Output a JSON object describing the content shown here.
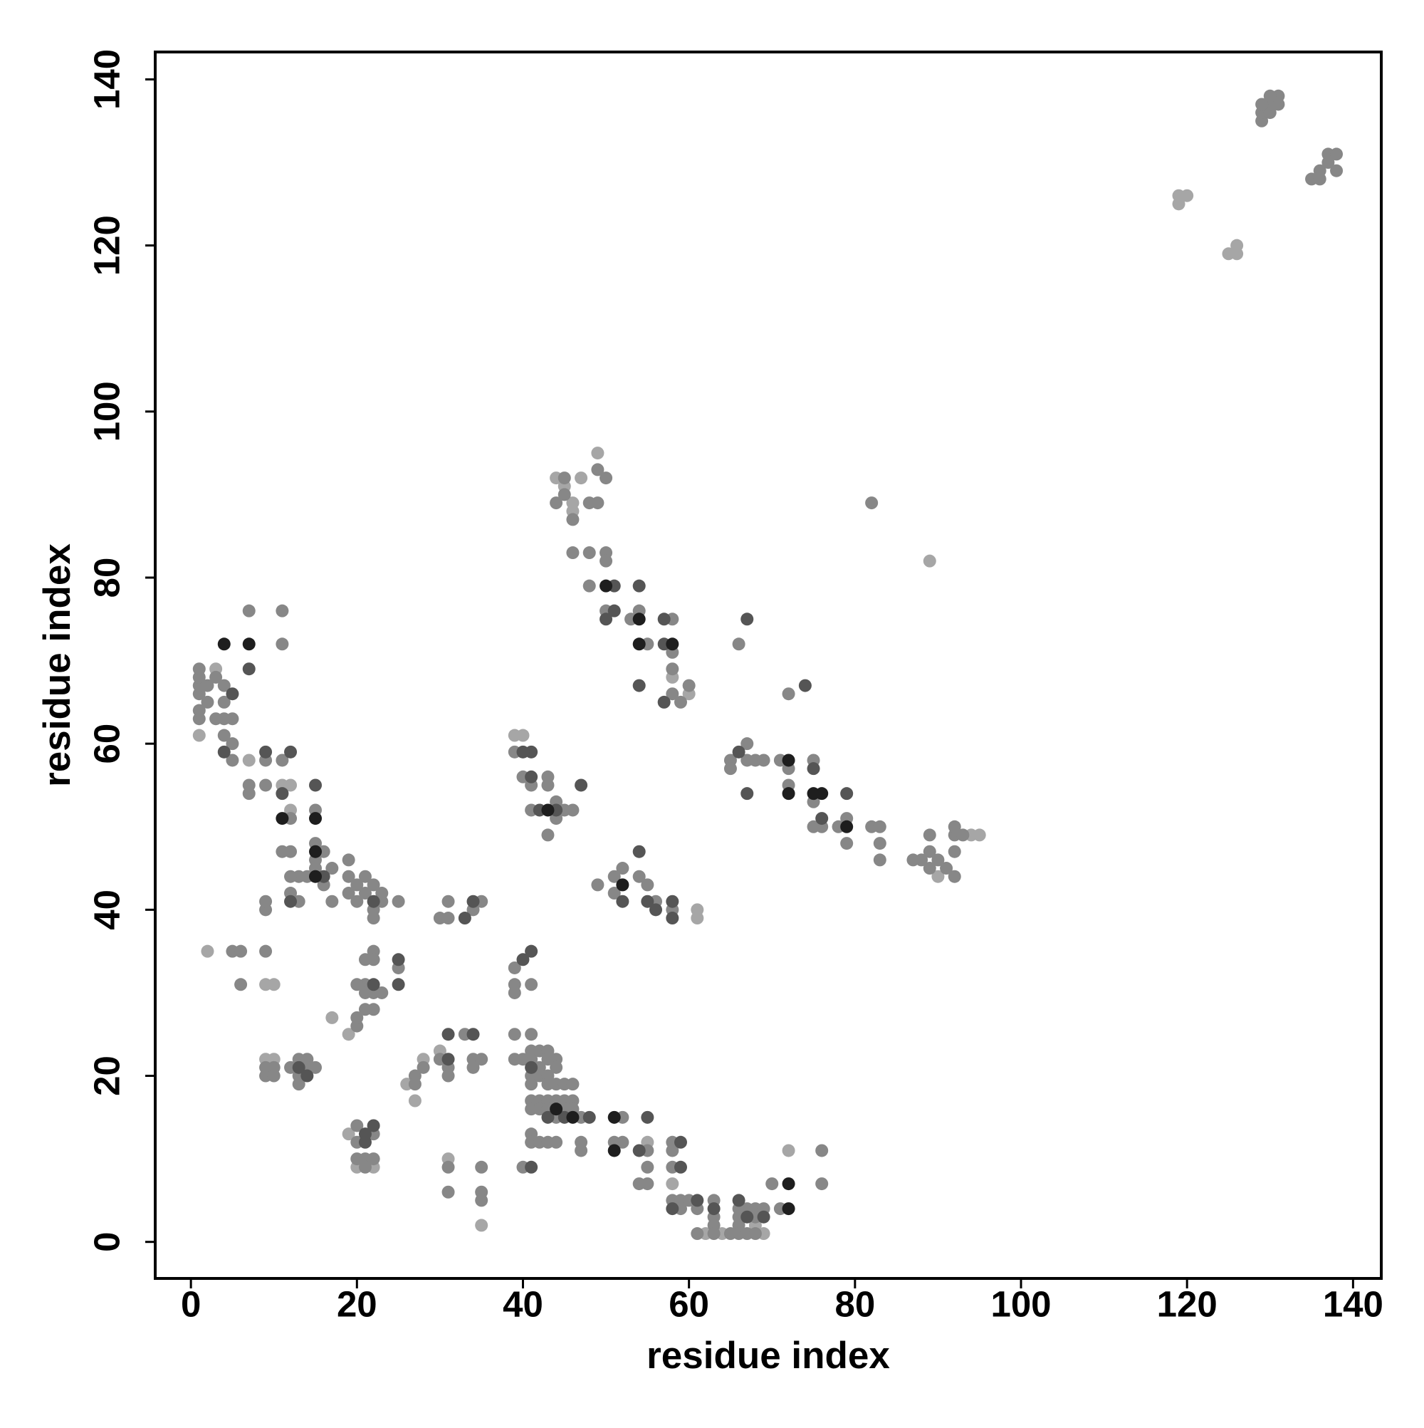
{
  "chart_data": {
    "type": "scatter",
    "xlabel": "residue index",
    "ylabel": "residue index",
    "xlim": [
      -4.3,
      143.4
    ],
    "ylim": [
      -4.4,
      143.3
    ],
    "xticks": [
      0,
      20,
      40,
      60,
      80,
      100,
      120,
      140
    ],
    "yticks": [
      0,
      20,
      40,
      60,
      80,
      100,
      120,
      140
    ],
    "series": [
      {
        "color": "#a6a6a6",
        "x": [
          119,
          119,
          120,
          125,
          126,
          126,
          45,
          46,
          46,
          47,
          49,
          44,
          39,
          40,
          7,
          11,
          12,
          9,
          10,
          61,
          61,
          58,
          60,
          27,
          28,
          30,
          9,
          10,
          19,
          22,
          20,
          31,
          35,
          72,
          58,
          68,
          69,
          17,
          19,
          26,
          2,
          89,
          90,
          95,
          94,
          1,
          3,
          62,
          64,
          55,
          12
        ],
        "y": [
          125,
          126,
          126,
          119,
          119,
          120,
          91,
          88,
          89,
          92,
          95,
          92,
          61,
          61,
          58,
          55,
          55,
          31,
          31,
          40,
          39,
          68,
          66,
          17,
          22,
          23,
          22,
          22,
          13,
          9,
          9,
          10,
          2,
          11,
          7,
          2,
          1,
          27,
          25,
          19,
          35,
          82,
          44,
          49,
          49,
          61,
          69,
          1,
          1,
          12,
          52
        ]
      },
      {
        "color": "#878787",
        "x": [
          129,
          129,
          130,
          130,
          131,
          131,
          130,
          129,
          135,
          136,
          137,
          137,
          138,
          138,
          136,
          82,
          45,
          46,
          48,
          49,
          49,
          50,
          44,
          45,
          46,
          48,
          50,
          50,
          48,
          50,
          53,
          54,
          55,
          58,
          58,
          58,
          58,
          59,
          60,
          66,
          65,
          65,
          67,
          67,
          68,
          69,
          71,
          72,
          72,
          72,
          75,
          75,
          75,
          76,
          78,
          79,
          79,
          82,
          83,
          83,
          83,
          87,
          88,
          89,
          89,
          89,
          90,
          91,
          92,
          92,
          92,
          92,
          93,
          1,
          1,
          1,
          1,
          1,
          1,
          2,
          2,
          3,
          3,
          4,
          4,
          4,
          5,
          4,
          5,
          5,
          7,
          11,
          11,
          7,
          7,
          9,
          9,
          11,
          12,
          11,
          12,
          15,
          15,
          16,
          15,
          15,
          16,
          17,
          17,
          14,
          13,
          12,
          12,
          13,
          19,
          19,
          19,
          20,
          20,
          21,
          21,
          22,
          22,
          23,
          23,
          22,
          25,
          9,
          9,
          39,
          40,
          41,
          41,
          43,
          43,
          43,
          44,
          44,
          45,
          46,
          49,
          51,
          52,
          51,
          54,
          55,
          56,
          58,
          30,
          31,
          31,
          34,
          35,
          5,
          6,
          6,
          9,
          21,
          22,
          22,
          21,
          20,
          21,
          22,
          23,
          25,
          20,
          20,
          21,
          22,
          39,
          39,
          39,
          41,
          9,
          9,
          10,
          10,
          12,
          13,
          13,
          14,
          15,
          13,
          14,
          27,
          27,
          28,
          30,
          31,
          31,
          33,
          34,
          34,
          35,
          39,
          39,
          40,
          41,
          41,
          41,
          41,
          41,
          42,
          42,
          42,
          43,
          43,
          43,
          43,
          44,
          44,
          44,
          45,
          46,
          41,
          41,
          42,
          42,
          43,
          43,
          44,
          44,
          45,
          45,
          46,
          46,
          47,
          41,
          41,
          42,
          43,
          44,
          47,
          47,
          20,
          20,
          22,
          20,
          21,
          21,
          22,
          40,
          31,
          31,
          35,
          35,
          35,
          51,
          52,
          52,
          55,
          55,
          54,
          55,
          58,
          58,
          58,
          58,
          59,
          60,
          59,
          61,
          61,
          63,
          63,
          63,
          63,
          65,
          66,
          66,
          66,
          66,
          67,
          67,
          68,
          68,
          68,
          69,
          71,
          70,
          76,
          76
        ],
        "y": [
          135,
          136,
          136,
          137,
          137,
          138,
          138,
          137,
          128,
          129,
          130,
          131,
          131,
          129,
          128,
          89,
          90,
          87,
          89,
          89,
          93,
          92,
          89,
          92,
          83,
          83,
          83,
          82,
          79,
          76,
          75,
          76,
          72,
          75,
          71,
          69,
          66,
          65,
          67,
          72,
          58,
          57,
          60,
          58,
          58,
          58,
          58,
          57,
          55,
          66,
          58,
          53,
          50,
          50,
          50,
          51,
          48,
          50,
          50,
          48,
          46,
          46,
          46,
          45,
          47,
          49,
          46,
          45,
          47,
          49,
          50,
          44,
          49,
          63,
          64,
          66,
          67,
          68,
          69,
          65,
          67,
          68,
          63,
          63,
          65,
          67,
          63,
          61,
          58,
          60,
          76,
          76,
          72,
          55,
          54,
          58,
          55,
          58,
          51,
          47,
          47,
          52,
          48,
          47,
          46,
          45,
          43,
          45,
          41,
          44,
          44,
          44,
          42,
          41,
          46,
          44,
          42,
          43,
          41,
          44,
          42,
          43,
          40,
          42,
          41,
          39,
          41,
          40,
          41,
          59,
          56,
          55,
          52,
          56,
          55,
          49,
          53,
          51,
          52,
          52,
          43,
          44,
          45,
          42,
          44,
          43,
          41,
          40,
          39,
          39,
          41,
          40,
          41,
          35,
          35,
          31,
          35,
          34,
          35,
          34,
          31,
          31,
          30,
          30,
          30,
          33,
          26,
          27,
          28,
          28,
          33,
          31,
          30,
          31,
          21,
          20,
          21,
          20,
          21,
          20,
          22,
          22,
          21,
          19,
          21,
          20,
          19,
          21,
          22,
          21,
          20,
          25,
          22,
          21,
          22,
          25,
          22,
          22,
          25,
          23,
          22,
          20,
          19,
          23,
          21,
          20,
          23,
          22,
          20,
          19,
          22,
          21,
          19,
          19,
          19,
          17,
          16,
          17,
          16,
          17,
          16,
          17,
          15,
          17,
          16,
          17,
          16,
          15,
          13,
          12,
          12,
          12,
          12,
          12,
          11,
          14,
          12,
          13,
          10,
          10,
          9,
          10,
          9,
          9,
          6,
          9,
          6,
          5,
          12,
          15,
          12,
          11,
          9,
          7,
          7,
          12,
          11,
          9,
          5,
          5,
          5,
          4,
          4,
          1,
          5,
          3,
          2,
          1,
          1,
          4,
          3,
          2,
          1,
          4,
          1,
          4,
          3,
          1,
          4,
          4,
          7,
          11,
          7
        ]
      },
      {
        "color": "#555555",
        "x": [
          7,
          4,
          5,
          12,
          9,
          11,
          15,
          16,
          22,
          22,
          25,
          25,
          34,
          33,
          40,
          41,
          31,
          34,
          31,
          13,
          14,
          21,
          21,
          22,
          41,
          54,
          51,
          50,
          51,
          57,
          57,
          57,
          54,
          67,
          74,
          67,
          66,
          76,
          79,
          75,
          41,
          40,
          41,
          42,
          44,
          47,
          54,
          55,
          56,
          58,
          58,
          52,
          41,
          43,
          48,
          45,
          55,
          59,
          59,
          63,
          66,
          69,
          67,
          58,
          61,
          54,
          12
        ],
        "y": [
          69,
          59,
          66,
          59,
          59,
          54,
          55,
          44,
          41,
          31,
          34,
          31,
          41,
          39,
          34,
          35,
          25,
          25,
          22,
          21,
          20,
          12,
          13,
          14,
          9,
          79,
          79,
          75,
          76,
          75,
          72,
          65,
          67,
          75,
          67,
          54,
          59,
          51,
          54,
          57,
          59,
          59,
          56,
          52,
          52,
          55,
          47,
          41,
          40,
          41,
          39,
          41,
          21,
          15,
          15,
          15,
          15,
          12,
          9,
          4,
          5,
          3,
          3,
          4,
          5,
          11,
          41
        ]
      },
      {
        "color": "#1e1e1e",
        "x": [
          4,
          7,
          11,
          15,
          15,
          50,
          54,
          54,
          58,
          72,
          72,
          75,
          76,
          79,
          43,
          52,
          44,
          46,
          51,
          51,
          72,
          72,
          15
        ],
        "y": [
          72,
          72,
          51,
          51,
          47,
          79,
          75,
          72,
          72,
          58,
          54,
          54,
          54,
          50,
          52,
          43,
          16,
          15,
          15,
          11,
          4,
          7,
          44
        ]
      }
    ]
  }
}
